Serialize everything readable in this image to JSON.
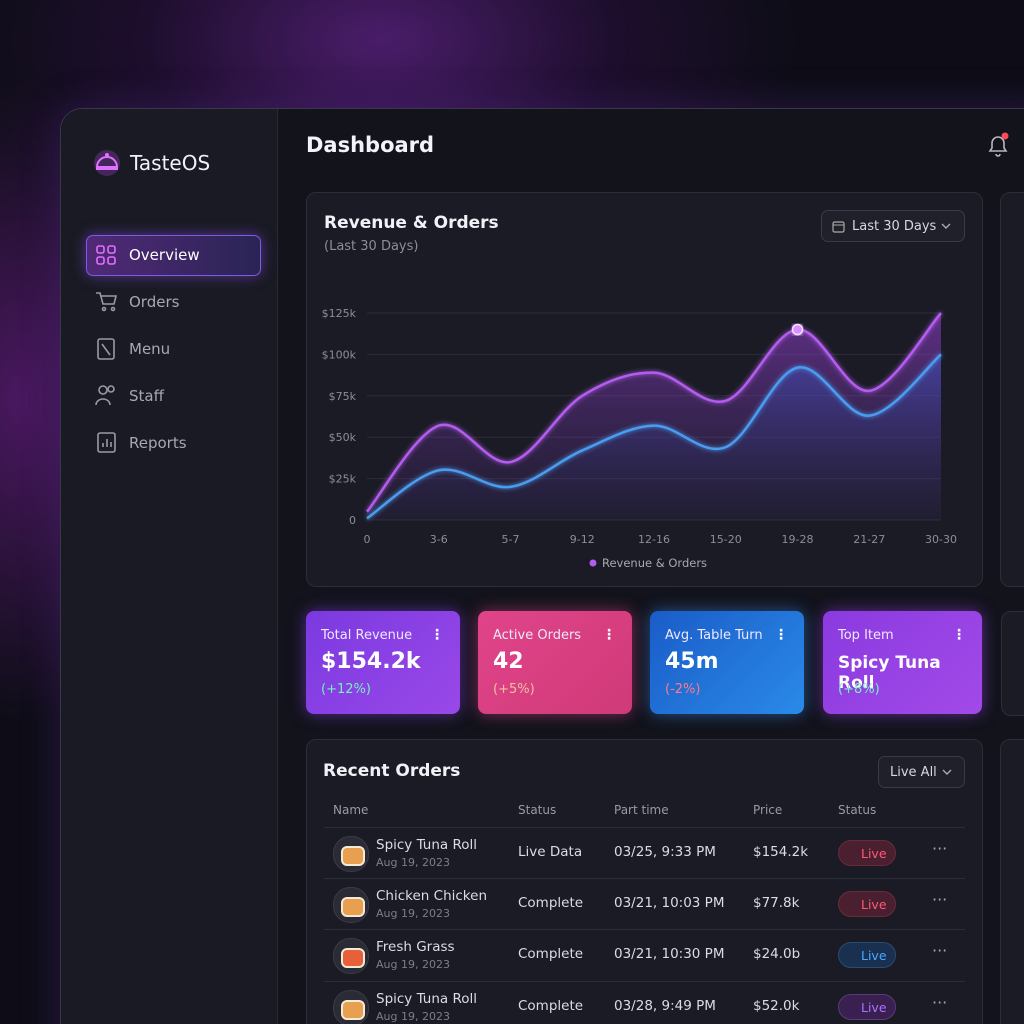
{
  "sidebar": {
    "brand": "TasteOS",
    "nav": [
      "Overview",
      "Orders",
      "Menu",
      "Staff",
      "Reports"
    ]
  },
  "header": {
    "title": "Dashboard"
  },
  "chart_data": {
    "type": "line",
    "title": "Revenue & Orders",
    "subtitle": "(Last 30 Days)",
    "range_button": "Last 30 Days",
    "categories": [
      "0",
      "3-6",
      "5-7",
      "9-12",
      "12-16",
      "15-20",
      "19-28",
      "21-27",
      "30-30"
    ],
    "series": [
      {
        "name": "Revenue & Orders",
        "color": "#b45cf0",
        "values": [
          5000,
          57000,
          35000,
          75000,
          89000,
          72000,
          115000,
          78000,
          125000
        ]
      },
      {
        "color": "#4a9cf0",
        "values": [
          1000,
          30000,
          20000,
          42000,
          57000,
          44000,
          92000,
          63000,
          100000
        ]
      }
    ],
    "ylim": [
      0,
      125000
    ],
    "yticks": [
      0,
      {
        "value": 25000,
        "label": "$25k"
      },
      {
        "value": 50000,
        "label": "$50k"
      },
      {
        "value": 75000,
        "label": "$75k"
      },
      {
        "value": 100000,
        "label": "$100k"
      },
      {
        "value": 125000,
        "label": "$125k"
      }
    ],
    "grid": true,
    "legend": "bottom"
  },
  "kpis": [
    {
      "label": "Total Revenue",
      "value": "$154.2k",
      "change": "(+12%)"
    },
    {
      "label": "Active Orders",
      "value": "42",
      "change": "(+5%)"
    },
    {
      "label": "Avg. Table Turn",
      "value": "45m",
      "change": "(-2%)"
    },
    {
      "label": "Top Item",
      "value": "Spicy Tuna Roll",
      "change": "(+8%)"
    }
  ],
  "orders": {
    "title": "Recent Orders",
    "filter": "Live All",
    "columns": [
      "Name",
      "Status",
      "Part time",
      "Price",
      "Status"
    ],
    "rows": [
      {
        "name": "Spicy Tuna Roll",
        "date": "Aug 19, 2023",
        "status": "Live Data",
        "time": "03/25, 9:33 PM",
        "price": "$154.2k",
        "badge": "Live"
      },
      {
        "name": "Chicken Chicken",
        "date": "Aug 19, 2023",
        "status": "Complete",
        "time": "03/21, 10:03 PM",
        "price": "$77.8k",
        "badge": "Live"
      },
      {
        "name": "Fresh Grass",
        "date": "Aug 19, 2023",
        "status": "Complete",
        "time": "03/21, 10:30 PM",
        "price": "$24.0b",
        "badge": "Live"
      },
      {
        "name": "Spicy Tuna Roll",
        "date": "Aug 19, 2023",
        "status": "Complete",
        "time": "03/28, 9:49 PM",
        "price": "$52.0k",
        "badge": "Live"
      }
    ]
  }
}
